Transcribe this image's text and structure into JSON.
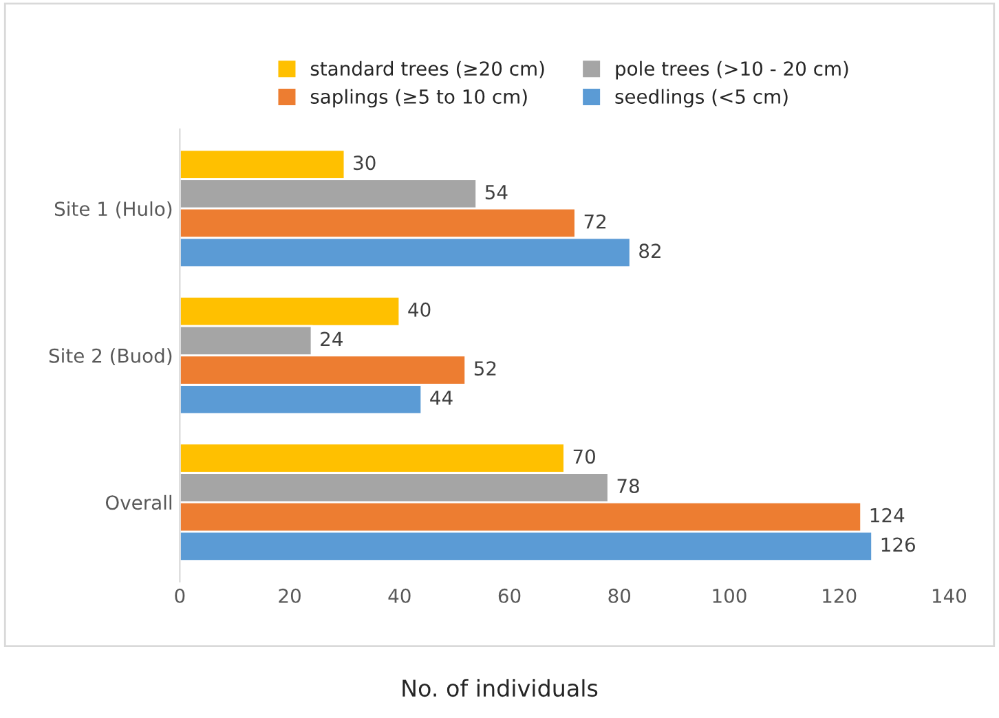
{
  "chart_data": {
    "type": "bar",
    "orientation": "horizontal",
    "xlabel": "No. of individuals",
    "categories": [
      "Site 1 (Hulo)",
      "Site 2 (Buod)",
      "Overall"
    ],
    "series": [
      {
        "name": "standard trees (≥20 cm)",
        "color": "#ffc000",
        "values": [
          30,
          40,
          70
        ]
      },
      {
        "name": "pole trees (>10 - 20 cm)",
        "color": "#a5a5a5",
        "values": [
          54,
          24,
          78
        ]
      },
      {
        "name": "saplings (≥5 to 10 cm)",
        "color": "#ed7d31",
        "values": [
          72,
          52,
          124
        ]
      },
      {
        "name": "seedlings (<5 cm)",
        "color": "#5b9bd5",
        "values": [
          82,
          44,
          126
        ]
      }
    ],
    "xlim": [
      0,
      140
    ],
    "xticks": [
      0,
      20,
      40,
      60,
      80,
      100,
      120,
      140
    ],
    "data_labels": true,
    "legend": "top",
    "grid": false
  }
}
